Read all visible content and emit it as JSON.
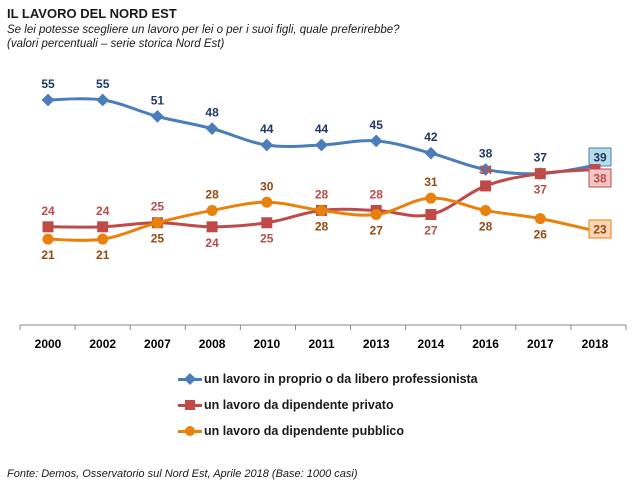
{
  "header": {
    "title": "IL LAVORO DEL NORD EST",
    "subtitle": "Se lei potesse scegliere un lavoro per lei o per i suoi figli, quale preferirebbe?",
    "note": "(valori percentuali – serie storica Nord Est)"
  },
  "footer": {
    "source": "Fonte: Demos, Osservatorio sul Nord Est, Aprile  2018 (Base: 1000 casi)"
  },
  "chart_data": {
    "type": "line",
    "title": "IL LAVORO DEL NORD EST",
    "x": [
      "2000",
      "2002",
      "2007",
      "2008",
      "2010",
      "2011",
      "2013",
      "2014",
      "2016",
      "2017",
      "2018"
    ],
    "ylim": [
      0,
      80
    ],
    "grid": false,
    "legend_position": "bottom",
    "series": [
      {
        "name": "un lavoro in proprio o da libero professionista",
        "color": "#4a7ebb",
        "marker": "diamond",
        "values": [
          55,
          55,
          51,
          48,
          44,
          44,
          45,
          42,
          38,
          37,
          39
        ],
        "final_box_bg": "#b7dde8"
      },
      {
        "name": "un lavoro da dipendente privato",
        "color": "#be4b48",
        "marker": "square",
        "values": [
          24,
          24,
          25,
          24,
          25,
          28,
          28,
          27,
          34,
          37,
          38
        ],
        "final_box_bg": "#f2c6c4"
      },
      {
        "name": "un lavoro da dipendente pubblico",
        "color": "#e8820c",
        "marker": "circle",
        "values": [
          21,
          21,
          25,
          28,
          30,
          28,
          27,
          31,
          28,
          26,
          23
        ],
        "final_box_bg": "#fcd5b4"
      }
    ]
  }
}
